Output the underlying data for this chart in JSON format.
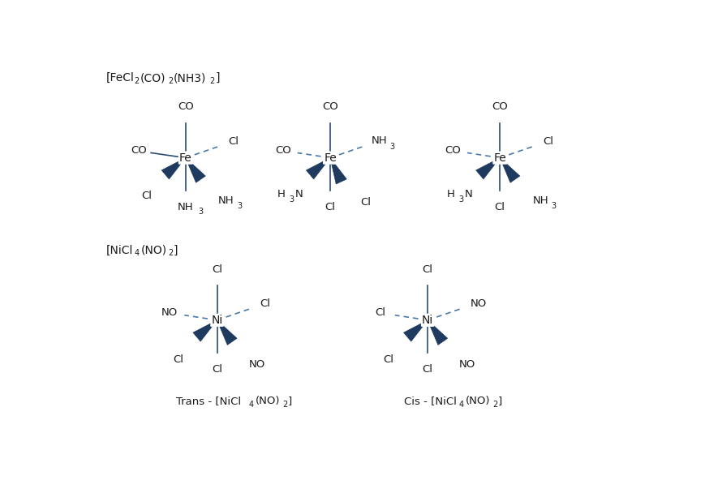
{
  "bg_color": "#ffffff",
  "metal_color": "#1e3a5f",
  "dashed_color": "#4a7aaa",
  "solid_color": "#2c4a6e",
  "text_color": "#1a1a1a",
  "title1_parts": [
    "[FeCl",
    "2",
    "(CO)",
    "2",
    "(NH3)",
    "2",
    "]"
  ],
  "title2_parts": [
    "[NiCl",
    "4",
    "(NO)",
    "2",
    "]"
  ],
  "label_trans_parts": [
    "Trans - [NiCl",
    "4",
    "(NO)",
    "2",
    "]"
  ],
  "label_cis_parts": [
    "Cis - [NiCl",
    "4",
    "(NO)",
    "2",
    "]"
  ]
}
